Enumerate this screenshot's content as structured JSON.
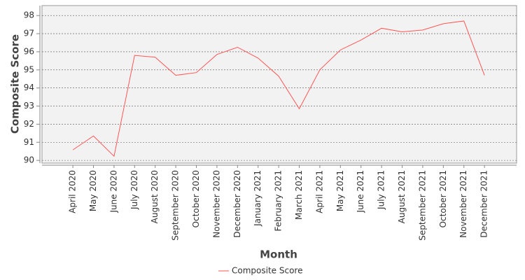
{
  "chart_data": {
    "type": "line",
    "x_label": "Month",
    "y_label": "Composite Score",
    "categories": [
      "April 2020",
      "May 2020",
      "June 2020",
      "July 2020",
      "August 2020",
      "September 2020",
      "October 2020",
      "November 2020",
      "December 2020",
      "January 2021",
      "February 2021",
      "March 2021",
      "April 2021",
      "May 2021",
      "June 2021",
      "July 2021",
      "August 2021",
      "September 2021",
      "October 2021",
      "November 2021",
      "December 2021"
    ],
    "series": [
      {
        "name": "Composite Score",
        "color": "#ff5555",
        "values": [
          90.58,
          91.35,
          90.23,
          95.8,
          95.7,
          94.7,
          94.85,
          95.85,
          96.25,
          95.65,
          94.65,
          92.85,
          95.0,
          96.1,
          96.65,
          97.3,
          97.1,
          97.2,
          97.55,
          97.7,
          94.7
        ]
      }
    ],
    "ylim": [
      89.85,
      98.55
    ],
    "yticks": [
      90,
      91,
      92,
      93,
      94,
      95,
      96,
      97,
      98
    ],
    "grid": true
  }
}
